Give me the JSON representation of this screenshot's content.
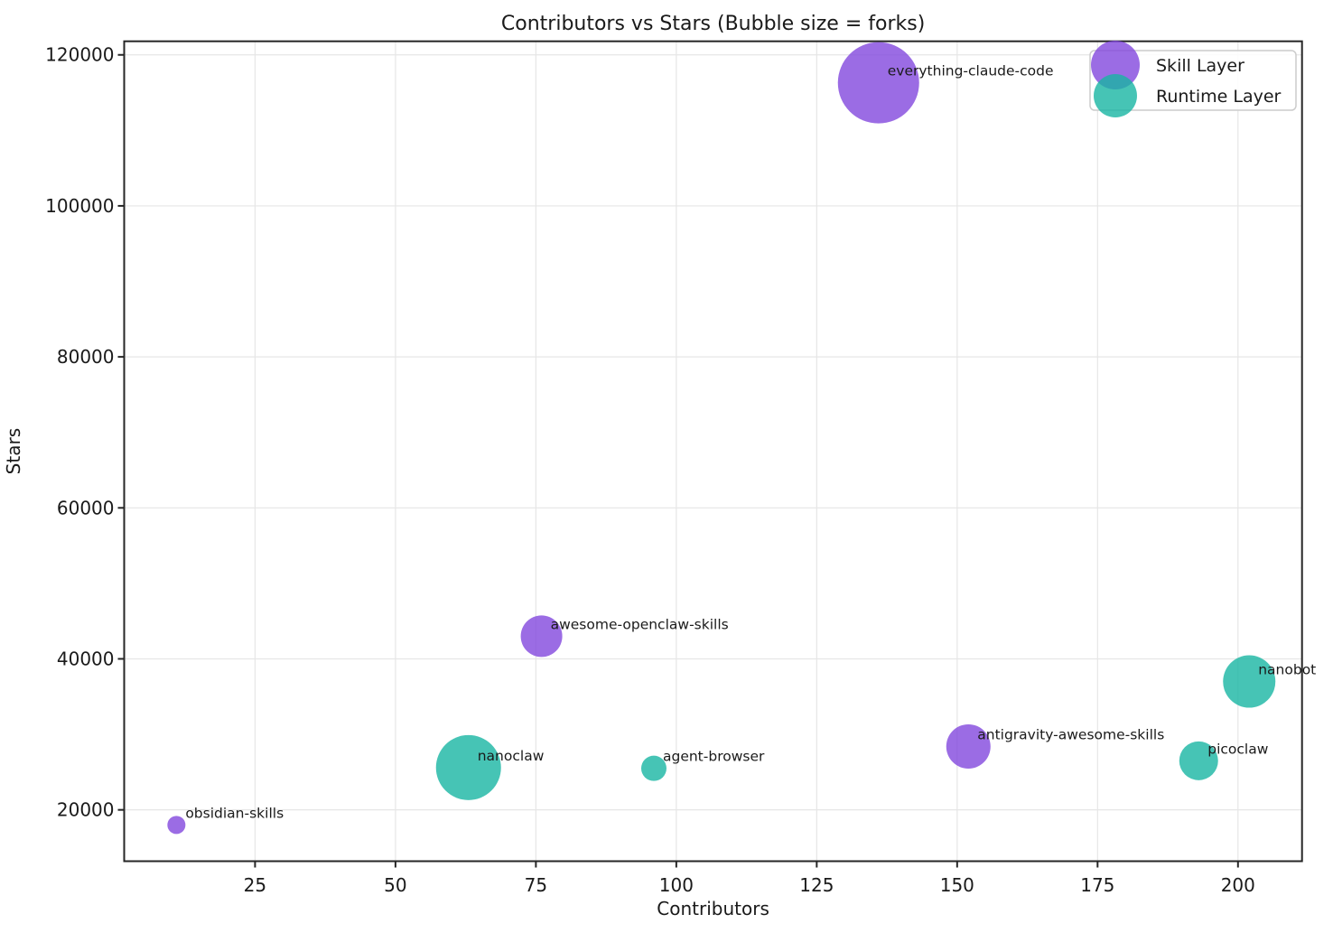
{
  "title": "Contributors vs Stars (Bubble size = forks)",
  "chart_data": {
    "type": "scatter",
    "title": "Contributors vs Stars (Bubble size = forks)",
    "xlabel": "Contributors",
    "ylabel": "Stars",
    "xlim": [
      1.7,
      211.4
    ],
    "ylim": [
      13200,
      121800
    ],
    "x_ticks": [
      25,
      50,
      75,
      100,
      125,
      150,
      175,
      200
    ],
    "y_ticks": [
      20000,
      40000,
      60000,
      80000,
      100000,
      120000
    ],
    "grid": true,
    "bubble_size_note": "Bubble size = forks (fork counts not labeled in pixels; radius_px records rendered size)",
    "marker_opacity": 0.8,
    "legend": {
      "position": "upper right",
      "entries": [
        {
          "label": "Skill Layer",
          "color": "#8247DD"
        },
        {
          "label": "Runtime Layer",
          "color": "#18B5A3"
        }
      ]
    },
    "series": [
      {
        "name": "Skill Layer",
        "color": "#8247DD",
        "points": [
          {
            "label": "everything-claude-code",
            "contributors": 136,
            "stars": 116300,
            "radius_px": 45
          },
          {
            "label": "awesome-openclaw-skills",
            "contributors": 76,
            "stars": 43000,
            "radius_px": 23
          },
          {
            "label": "antigravity-awesome-skills",
            "contributors": 152,
            "stars": 28400,
            "radius_px": 24.5
          },
          {
            "label": "obsidian-skills",
            "contributors": 11,
            "stars": 18000,
            "radius_px": 10
          }
        ]
      },
      {
        "name": "Runtime Layer",
        "color": "#18B5A3",
        "points": [
          {
            "label": "nanoclaw",
            "contributors": 63,
            "stars": 25600,
            "radius_px": 36
          },
          {
            "label": "agent-browser",
            "contributors": 96,
            "stars": 25500,
            "radius_px": 14
          },
          {
            "label": "nanobot",
            "contributors": 202,
            "stars": 37000,
            "radius_px": 29
          },
          {
            "label": "picoclaw",
            "contributors": 193,
            "stars": 26500,
            "radius_px": 21.5
          }
        ]
      }
    ]
  }
}
